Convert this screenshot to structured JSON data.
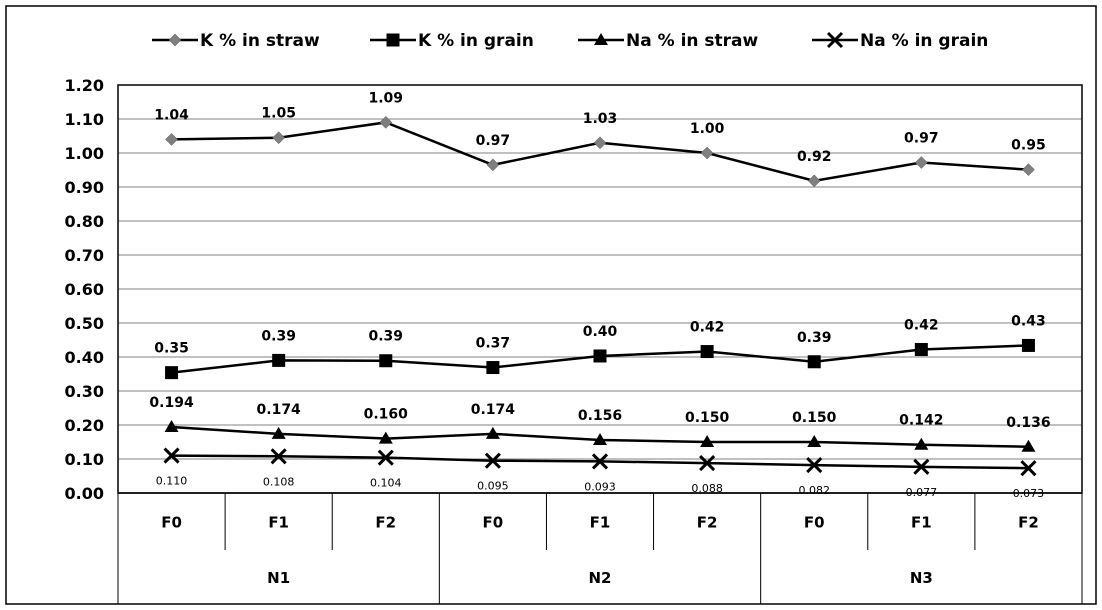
{
  "chart_data": {
    "type": "line",
    "title": "",
    "xlabel": "",
    "ylabel": "",
    "ylim": [
      0,
      1.2
    ],
    "yticks": [
      "0.00",
      "0.10",
      "0.20",
      "0.30",
      "0.40",
      "0.50",
      "0.60",
      "0.70",
      "0.80",
      "0.90",
      "1.00",
      "1.10",
      "1.20"
    ],
    "grid": true,
    "legend_position": "top",
    "categories": [
      "F0",
      "F1",
      "F2",
      "F0",
      "F1",
      "F2",
      "F0",
      "F1",
      "F2"
    ],
    "groups": [
      "N1",
      "N2",
      "N3"
    ],
    "series": [
      {
        "name": "K % in straw",
        "marker": "diamond",
        "marker_color": "#7f7f7f",
        "line_color": "#000000",
        "values": [
          1.04,
          1.045,
          1.09,
          0.965,
          1.03,
          1.0,
          0.918,
          0.972,
          0.951
        ],
        "labels": [
          "1.04",
          "1.05",
          "1.09",
          "0.97",
          "1.03",
          "1.00",
          "0.92",
          "0.97",
          "0.95"
        ]
      },
      {
        "name": "K % in grain",
        "marker": "square",
        "marker_color": "#000000",
        "line_color": "#000000",
        "values": [
          0.354,
          0.39,
          0.389,
          0.369,
          0.403,
          0.416,
          0.386,
          0.422,
          0.434
        ],
        "labels": [
          "0.35",
          "0.39",
          "0.39",
          "0.37",
          "0.40",
          "0.42",
          "0.39",
          "0.42",
          "0.43"
        ]
      },
      {
        "name": "Na % in straw",
        "marker": "triangle",
        "marker_color": "#000000",
        "line_color": "#000000",
        "values": [
          0.194,
          0.174,
          0.16,
          0.174,
          0.156,
          0.15,
          0.15,
          0.142,
          0.136
        ],
        "labels": [
          "0.194",
          "0.174",
          "0.160",
          "0.174",
          "0.156",
          "0.150",
          "0.150",
          "0.142",
          "0.136"
        ]
      },
      {
        "name": "Na % in grain",
        "marker": "x",
        "marker_color": "#000000",
        "line_color": "#000000",
        "values": [
          0.11,
          0.108,
          0.104,
          0.095,
          0.093,
          0.088,
          0.082,
          0.077,
          0.073
        ],
        "labels": [
          "0.110",
          "0.108",
          "0.104",
          "0.095",
          "0.093",
          "0.088",
          "0.082",
          "0.077",
          "0.073"
        ]
      }
    ]
  }
}
